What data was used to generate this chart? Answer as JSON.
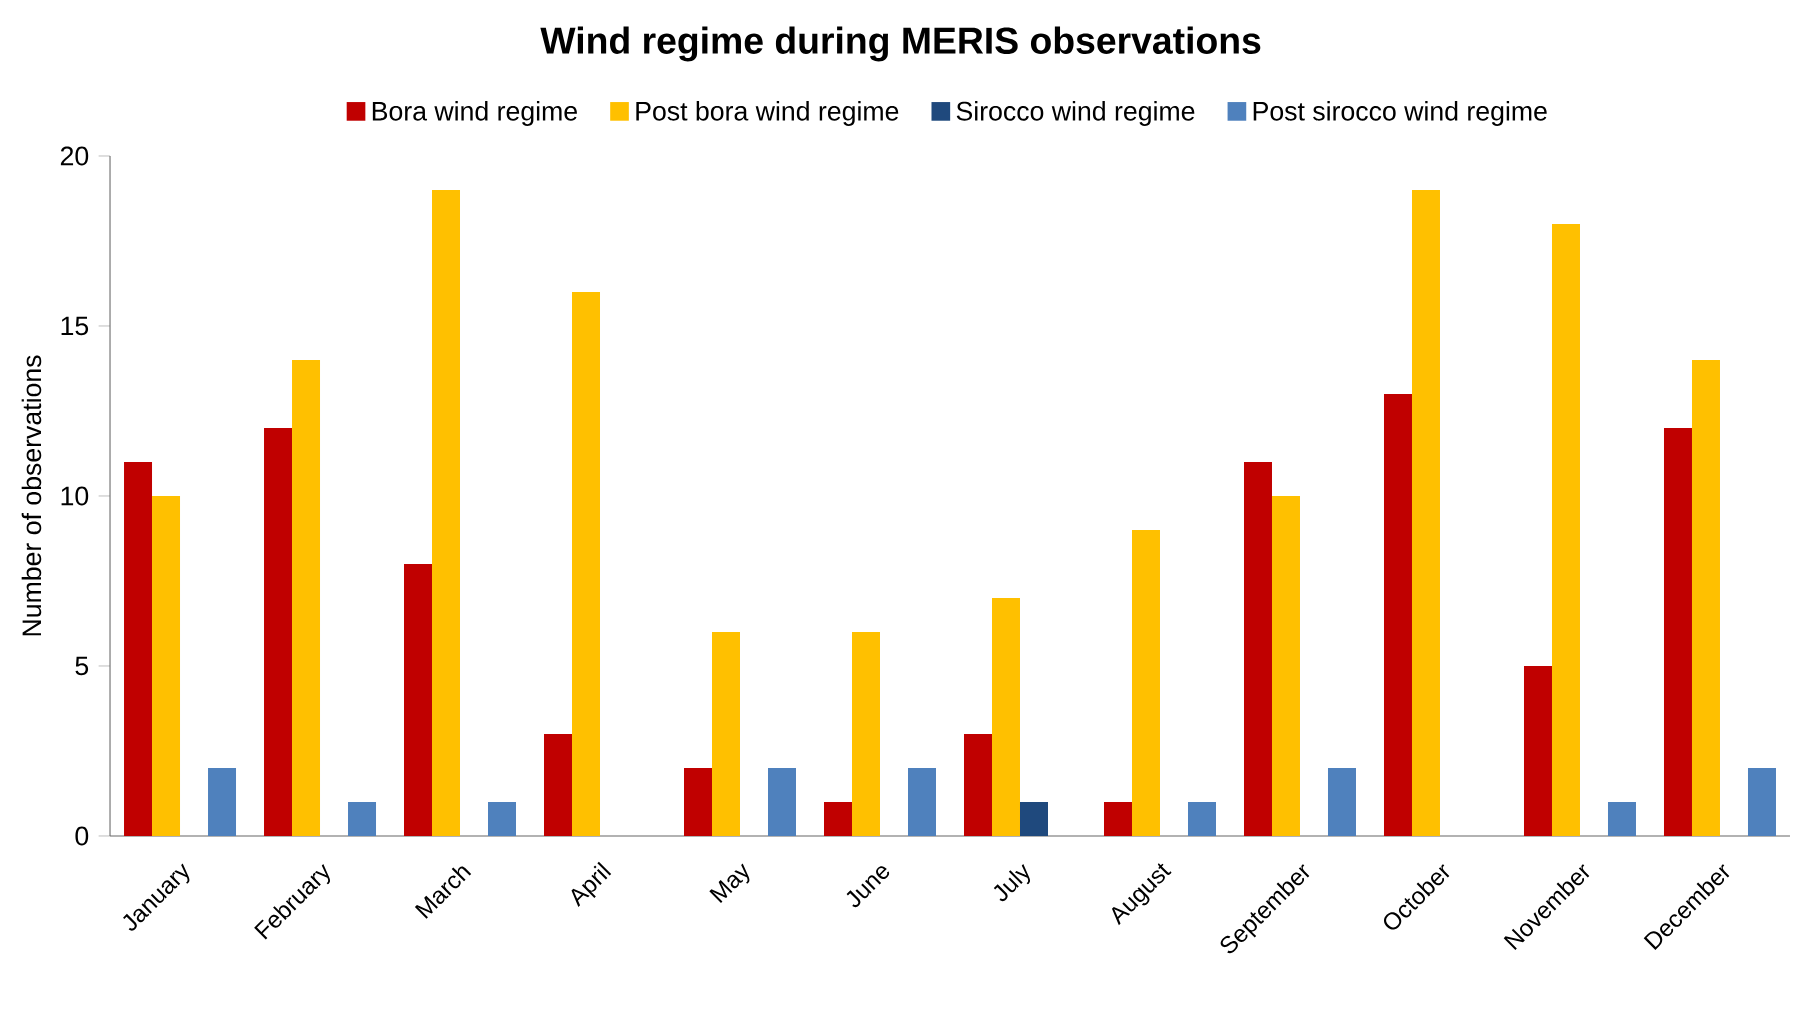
{
  "chart_data": {
    "type": "bar",
    "title": "Wind regime during MERIS observations",
    "ylabel": "Number of observations",
    "categories": [
      "January",
      "February",
      "March",
      "April",
      "May",
      "June",
      "July",
      "August",
      "September",
      "October",
      "November",
      "December"
    ],
    "series": [
      {
        "name": "Bora wind regime",
        "color": "#c00000",
        "values": [
          11,
          12,
          8,
          3,
          2,
          1,
          3,
          1,
          11,
          13,
          5,
          12
        ]
      },
      {
        "name": "Post bora wind regime",
        "color": "#ffc000",
        "values": [
          10,
          14,
          19,
          16,
          6,
          6,
          7,
          9,
          10,
          19,
          18,
          14
        ]
      },
      {
        "name": "Sirocco wind regime",
        "color": "#1f497d",
        "values": [
          0,
          0,
          0,
          0,
          0,
          0,
          1,
          0,
          0,
          0,
          0,
          0
        ]
      },
      {
        "name": "Post sirocco wind regime",
        "color": "#4f81bd",
        "values": [
          2,
          1,
          1,
          0,
          2,
          2,
          0,
          1,
          2,
          0,
          1,
          2
        ]
      }
    ],
    "ylim": [
      0,
      20
    ],
    "yticks": [
      0,
      5,
      10,
      15,
      20
    ],
    "grid": false,
    "legend": "top"
  }
}
